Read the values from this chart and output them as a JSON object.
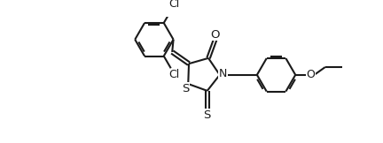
{
  "bg_color": "#ffffff",
  "line_color": "#1a1a1a",
  "line_width": 1.5,
  "font_size": 9,
  "figsize": [
    4.32,
    1.62
  ],
  "dpi": 100,
  "xlim": [
    0.0,
    4.32
  ],
  "ylim": [
    0.0,
    1.62
  ]
}
